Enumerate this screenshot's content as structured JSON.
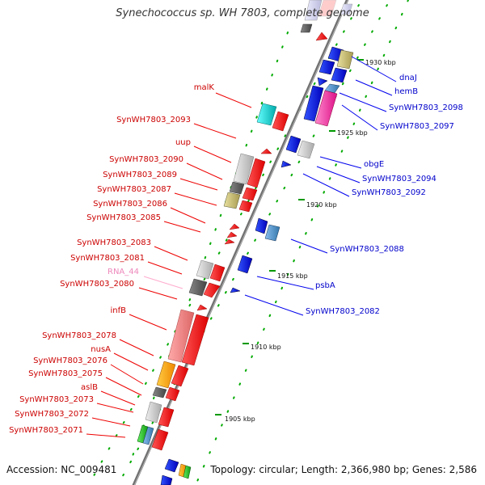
{
  "title": "Synechococcus sp. WH 7803, complete genome",
  "footer": {
    "accession": "Accession: NC_009481",
    "topology": "Topology: circular; Length: 2,366,980 bp; Genes: 2,586"
  },
  "colors": {
    "forward_gene": "#ff0000",
    "reverse_gene": "#0000ff",
    "backbone": "#808080",
    "tick": "#008000",
    "forward_label": "#cc0000",
    "reverse_label": "#0000cc",
    "rna_label": "#ee88bb"
  },
  "scale_ticks": [
    {
      "label": "1930 kbp"
    },
    {
      "label": "1925 kbp"
    },
    {
      "label": "1920 kbp"
    },
    {
      "label": "1915 kbp"
    },
    {
      "label": "1910 kbp"
    },
    {
      "label": "1905 kbp"
    }
  ],
  "forward_labels": [
    "malK",
    "SynWH7803_2093",
    "uup",
    "SynWH7803_2090",
    "SynWH7803_2089",
    "SynWH7803_2087",
    "SynWH7803_2086",
    "SynWH7803_2085",
    "SynWH7803_2083",
    "SynWH7803_2081",
    "RNA_44",
    "SynWH7803_2080",
    "infB",
    "SynWH7803_2078",
    "nusA",
    "SynWH7803_2076",
    "SynWH7803_2075",
    "aslB",
    "SynWH7803_2073",
    "SynWH7803_2072",
    "SynWH7803_2071"
  ],
  "reverse_labels": [
    "dnaJ",
    "hemB",
    "SynWH7803_2098",
    "SynWH7803_2097",
    "obgE",
    "SynWH7803_2094",
    "SynWH7803_2092",
    "SynWH7803_2088",
    "psbA",
    "SynWH7803_2082"
  ]
}
